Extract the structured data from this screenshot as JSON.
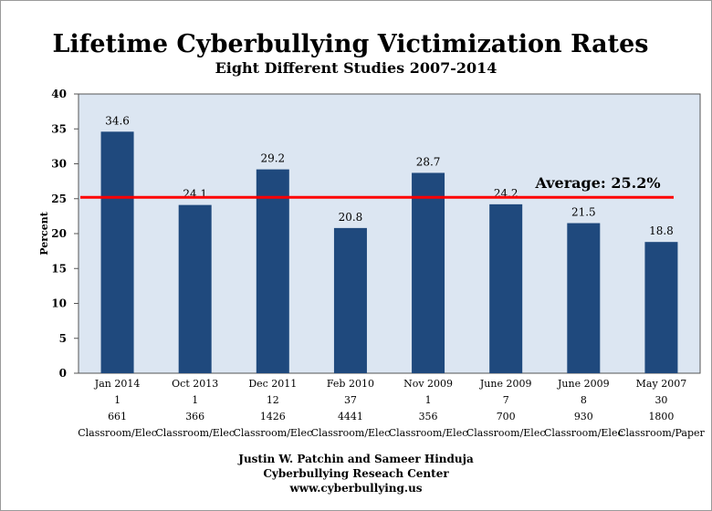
{
  "chart_data": {
    "type": "bar",
    "title": "Lifetime Cyberbullying Victimization Rates",
    "subtitle": "Eight Different Studies 2007-2014",
    "ylabel": "Percent",
    "xlabel": "",
    "ylim": [
      0,
      40
    ],
    "yticks": [
      0,
      5,
      10,
      15,
      20,
      25,
      30,
      35,
      40
    ],
    "grid": false,
    "categories": [
      "Jan 2014",
      "Oct 2013",
      "Dec 2011",
      "Feb 2010",
      "Nov 2009",
      "June 2009",
      "June 2009",
      "May 2007"
    ],
    "category_rows": [
      [
        "1",
        "1",
        "12",
        "37",
        "1",
        "7",
        "8",
        "30"
      ],
      [
        "661",
        "366",
        "1426",
        "4441",
        "356",
        "700",
        "930",
        "1800"
      ],
      [
        "Classroom/Elec",
        "Classroom/Elec",
        "Classroom/Elec",
        "Classroom/Elec",
        "Classroom/Elec",
        "Classroom/Elec",
        "Classroom/Elec",
        "Classroom/Paper"
      ]
    ],
    "values": [
      34.6,
      24.1,
      29.2,
      20.8,
      28.7,
      24.2,
      21.5,
      18.8
    ],
    "data_labels": [
      "34.6",
      "24.1",
      "29.2",
      "20.8",
      "28.7",
      "24.2",
      "21.5",
      "18.8"
    ],
    "average": {
      "value": 25.2,
      "label": "Average: 25.2%",
      "color": "#ff0000"
    },
    "colors": {
      "bar": "#1f497d",
      "plot_bg": "#dce6f2"
    }
  },
  "footer": {
    "line1": "Justin W. Patchin and Sameer Hinduja",
    "line2": "Cyberbullying Reseach Center",
    "line3": "www.cyberbullying.us"
  }
}
